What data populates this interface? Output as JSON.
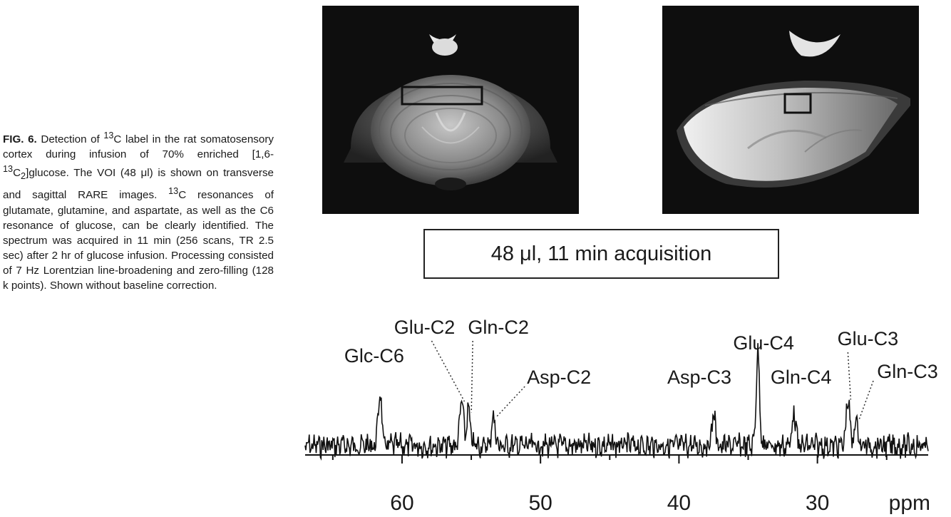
{
  "caption": {
    "fig_label": "FIG. 6.",
    "text_1": " Detection of ",
    "sup_13": "13",
    "text_2": "C label in the rat somatosensory cortex during infusion of 70% enriched [1,6-",
    "sup_13b": "13",
    "text_3": "C",
    "sub_2": "2",
    "text_4": "]glucose. The VOI (48 μl) is shown on transverse and sagittal RARE images. ",
    "sup_13c": "13",
    "text_5": "C resonances of glutamate, glutamine, and aspartate, as well as the C6 resonance of glucose, can be clearly identified. The spectrum was acquired in 11 min (256 scans, TR 2.5 sec) after 2 hr of glucose infusion. Processing consisted of 7 Hz Lorentzian line-broadening and zero-filling (128 k points). Shown without baseline correction."
  },
  "acquisition_box": "48 μl, 11 min acquisition",
  "images": [
    {
      "name": "transverse",
      "voi": "rectangle VOI over cortex"
    },
    {
      "name": "sagittal",
      "voi": "square VOI over cortex"
    }
  ],
  "chart_data": {
    "type": "line",
    "xlabel": "ppm",
    "x_reversed": true,
    "xlim": [
      67,
      22
    ],
    "xticks": [
      60,
      50,
      40,
      30
    ],
    "xtick_labels": [
      "60",
      "50",
      "40",
      "30"
    ],
    "peaks": [
      {
        "label": "Glc-C6",
        "ppm": 61.6,
        "height": 0.58
      },
      {
        "label": "Glu-C2",
        "ppm": 55.7,
        "height": 0.5
      },
      {
        "label": "Gln-C2",
        "ppm": 55.2,
        "height": 0.38
      },
      {
        "label": "Asp-C2",
        "ppm": 53.4,
        "height": 0.33
      },
      {
        "label": "Asp-C3",
        "ppm": 37.5,
        "height": 0.35
      },
      {
        "label": "Glu-C4",
        "ppm": 34.3,
        "height": 1.0
      },
      {
        "label": "Gln-C4",
        "ppm": 31.7,
        "height": 0.38
      },
      {
        "label": "Glu-C3",
        "ppm": 27.8,
        "height": 0.52
      },
      {
        "label": "Gln-C3",
        "ppm": 27.2,
        "height": 0.3
      }
    ]
  }
}
